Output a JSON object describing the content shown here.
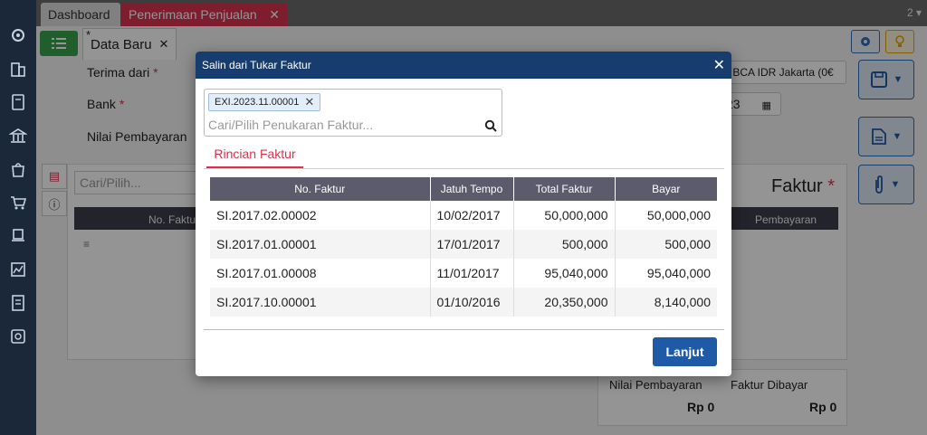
{
  "tabs": {
    "dashboard": "Dashboard",
    "penerimaan": "Penerimaan Penjualan",
    "count": "2"
  },
  "subtab": {
    "label": "Data Baru",
    "star": "*"
  },
  "form": {
    "terima_dari": "Terima dari",
    "bank": "Bank",
    "nilai_pembayaran": "Nilai Pembayaran",
    "bank_value": "k BCA IDR Jakarta (0€",
    "date_value": "23",
    "search_placeholder": "Cari/Pilih...",
    "faktur_title": "Faktur",
    "col_no_faktur": "No. Faktur",
    "col_pembayaran": "Pembayaran",
    "summary_nilai_label": "Nilai Pembayaran",
    "summary_nilai_value": "Rp 0",
    "summary_faktur_label": "Faktur Dibayar",
    "summary_faktur_value": "Rp 0"
  },
  "modal": {
    "title": "Salin dari Tukar Faktur",
    "chip": "EXI.2023.11.00001",
    "search_placeholder": "Cari/Pilih Penukaran Faktur...",
    "tab": "Rincian Faktur",
    "columns": {
      "no_faktur": "No. Faktur",
      "jatuh_tempo": "Jatuh Tempo",
      "total_faktur": "Total Faktur",
      "bayar": "Bayar"
    },
    "rows": [
      {
        "no": "SI.2017.02.00002",
        "jt": "10/02/2017",
        "total": "50,000,000",
        "bayar": "50,000,000"
      },
      {
        "no": "SI.2017.01.00001",
        "jt": "17/01/2017",
        "total": "500,000",
        "bayar": "500,000"
      },
      {
        "no": "SI.2017.01.00008",
        "jt": "11/01/2017",
        "total": "95,040,000",
        "bayar": "95,040,000"
      },
      {
        "no": "SI.2017.10.00001",
        "jt": "01/10/2016",
        "total": "20,350,000",
        "bayar": "8,140,000"
      }
    ],
    "button": "Lanjut"
  },
  "colors": {
    "sidebar": "#1b2839",
    "accent": "#d9324e",
    "header": "#173d6e",
    "primary": "#1f5aa6"
  }
}
